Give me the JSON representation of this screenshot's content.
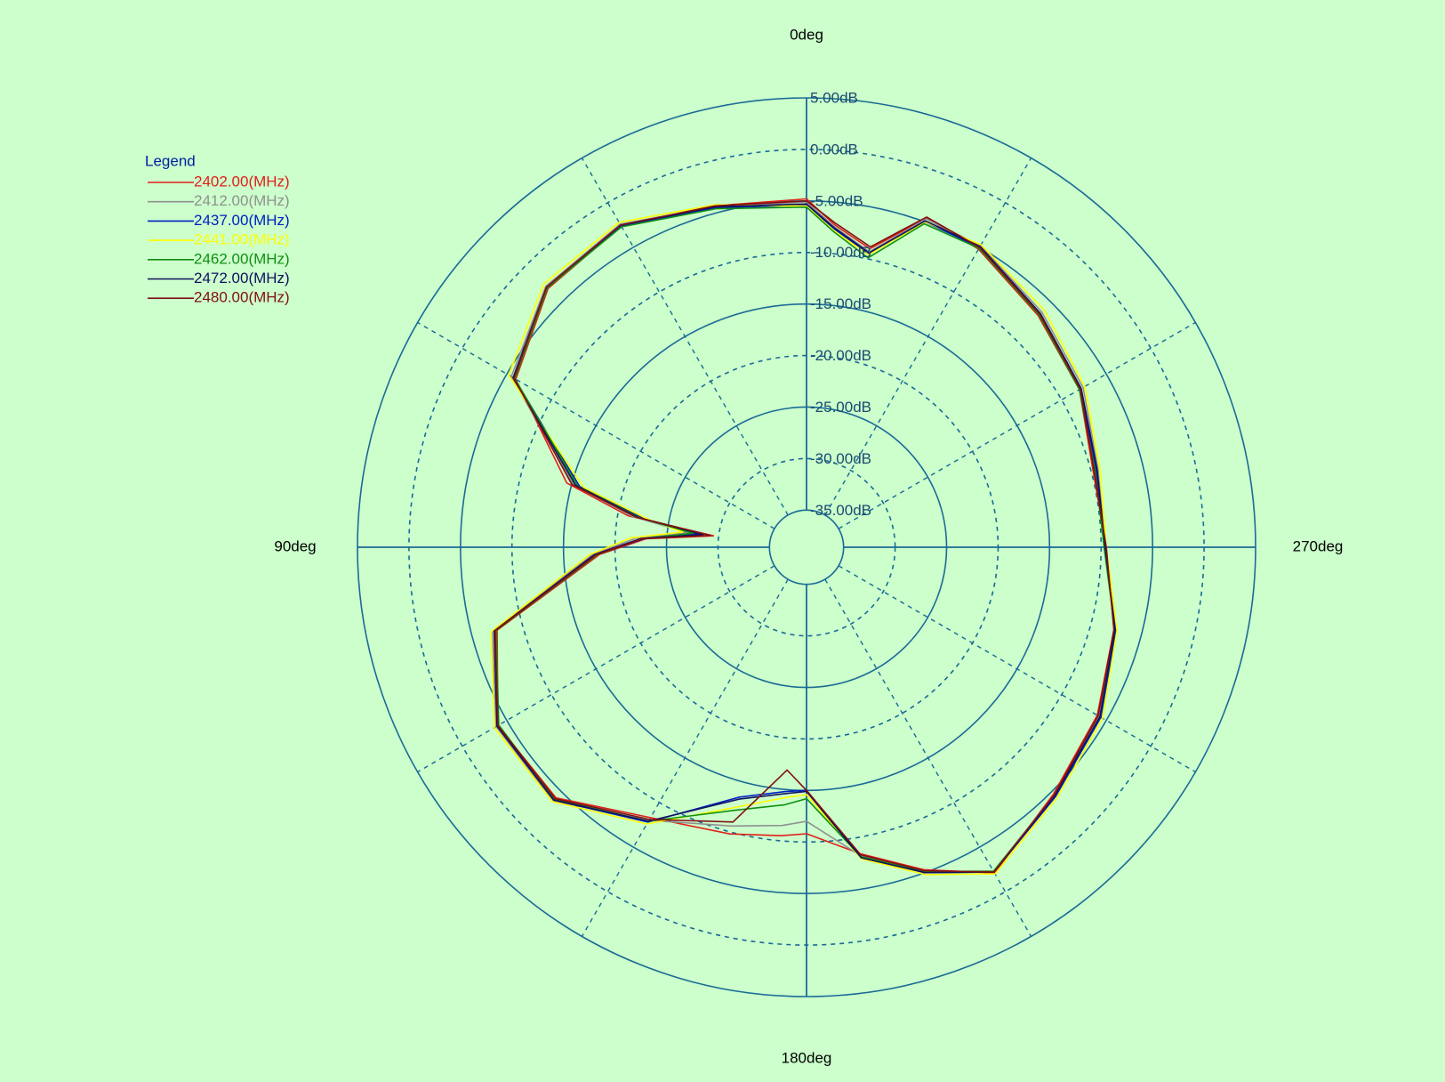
{
  "chart_data": {
    "type": "polar-line",
    "legend_title": "Legend",
    "legend": "top-left",
    "theta_zero": "top",
    "theta_direction": "counterclockwise",
    "rlim": [
      -38.6,
      5
    ],
    "rticks": [
      {
        "value": -35,
        "label": "-35.00dB"
      },
      {
        "value": -30,
        "label": "-30.00dB"
      },
      {
        "value": -25,
        "label": "-25.00dB"
      },
      {
        "value": -20,
        "label": "-20.00dB"
      },
      {
        "value": -15,
        "label": "-15.00dB"
      },
      {
        "value": -10,
        "label": "-10.00dB"
      },
      {
        "value": -5,
        "label": "-5.00dB"
      },
      {
        "value": 0,
        "label": "0.00dB"
      },
      {
        "value": 5,
        "label": "5.00dB"
      }
    ],
    "thetaticks": [
      {
        "value": 0,
        "label": "0deg"
      },
      {
        "value": 90,
        "label": "90deg"
      },
      {
        "value": 180,
        "label": "180deg"
      },
      {
        "value": 270,
        "label": "270deg"
      }
    ],
    "theta_minor_grid": [
      30,
      60,
      120,
      150,
      210,
      240,
      300,
      330
    ],
    "x": [
      0,
      15,
      30,
      45,
      60,
      75,
      80,
      83,
      87,
      92,
      105,
      120,
      135,
      150,
      165,
      175,
      180,
      190,
      200,
      210,
      225,
      240,
      255,
      270,
      285,
      300,
      315,
      330,
      340,
      348,
      355
    ],
    "series": [
      {
        "name": "2402.00(MHz)",
        "color": "#e0201a",
        "values": [
          -4.8,
          -4.3,
          -2.6,
          -3.1,
          -6.0,
          -14.5,
          -21,
          -29.5,
          -23,
          -18.5,
          -7.5,
          -4.0,
          -4.2,
          -8.3,
          -9.8,
          -10.5,
          -10.8,
          -8.4,
          -5.3,
          -2.1,
          -4.7,
          -6.0,
          -7.7,
          -9.5,
          -9.8,
          -8.0,
          -6.8,
          -5.2,
          -4.6,
          -9.0,
          -7.2
        ]
      },
      {
        "name": "2412.00(MHz)",
        "color": "#909090",
        "values": [
          -5.1,
          -4.4,
          -2.4,
          -2.8,
          -5.5,
          -15.2,
          -21.5,
          -27,
          -22,
          -17.8,
          -7.0,
          -3.8,
          -3.8,
          -8.0,
          -10.6,
          -11.5,
          -12,
          -8.2,
          -5.1,
          -2.3,
          -4.6,
          -5.8,
          -7.5,
          -9.6,
          -9.3,
          -7.6,
          -6.3,
          -4.8,
          -4.7,
          -9.3,
          -7.4
        ]
      },
      {
        "name": "2437.00(MHz)",
        "color": "#0020c0",
        "values": [
          -5.4,
          -4.5,
          -2.6,
          -3.0,
          -5.8,
          -15.8,
          -22.5,
          -28,
          -22.8,
          -18.2,
          -7.3,
          -4.0,
          -3.9,
          -7.8,
          -13.5,
          -14.8,
          -15,
          -8.1,
          -5.0,
          -2.2,
          -4.4,
          -5.6,
          -7.5,
          -9.7,
          -9.5,
          -7.9,
          -6.6,
          -5.0,
          -5.0,
          -9.5,
          -7.6
        ]
      },
      {
        "name": "2441.00(MHz)",
        "color": "#ffff00",
        "values": [
          -5.5,
          -4.2,
          -2.2,
          -2.5,
          -5.2,
          -16.2,
          -23,
          -26.5,
          -21.5,
          -17.5,
          -6.9,
          -3.6,
          -3.7,
          -7.6,
          -12.5,
          -14.2,
          -14.6,
          -7.9,
          -4.8,
          -2.0,
          -4.2,
          -5.4,
          -7.4,
          -9.5,
          -9.1,
          -7.4,
          -6.0,
          -4.7,
          -5.0,
          -9.6,
          -7.8
        ]
      },
      {
        "name": "2462.00(MHz)",
        "color": "#109010",
        "values": [
          -5.6,
          -4.6,
          -2.7,
          -3.0,
          -5.9,
          -15.6,
          -22.2,
          -27.5,
          -22.6,
          -18.3,
          -7.4,
          -4.1,
          -4.0,
          -7.9,
          -12.2,
          -13.5,
          -14.2,
          -8.1,
          -5.1,
          -2.3,
          -4.5,
          -5.7,
          -7.6,
          -9.7,
          -9.6,
          -8.0,
          -6.7,
          -5.1,
          -5.2,
          -9.9,
          -7.9
        ]
      },
      {
        "name": "2472.00(MHz)",
        "color": "#101060",
        "values": [
          -5.3,
          -4.4,
          -2.5,
          -2.9,
          -5.7,
          -15.4,
          -22,
          -28.5,
          -22.5,
          -18,
          -7.2,
          -3.9,
          -3.9,
          -7.9,
          -13.3,
          -14.6,
          -14.9,
          -8,
          -5,
          -2.2,
          -4.5,
          -5.7,
          -7.6,
          -9.6,
          -9.4,
          -7.8,
          -6.5,
          -4.9,
          -4.9,
          -9.4,
          -7.5
        ]
      },
      {
        "name": "2480.00(MHz)",
        "color": "#801010",
        "values": [
          -5.0,
          -4.3,
          -2.5,
          -2.9,
          -5.8,
          -15.0,
          -21.8,
          -29.2,
          -22.7,
          -18.2,
          -7.3,
          -4.0,
          -4.1,
          -8.1,
          -11.0,
          -16.9,
          -15.0,
          -8.3,
          -5.2,
          -2.2,
          -4.6,
          -5.9,
          -7.7,
          -9.5,
          -9.7,
          -7.9,
          -6.6,
          -5.0,
          -4.5,
          -8.8,
          -7.0
        ]
      }
    ]
  }
}
